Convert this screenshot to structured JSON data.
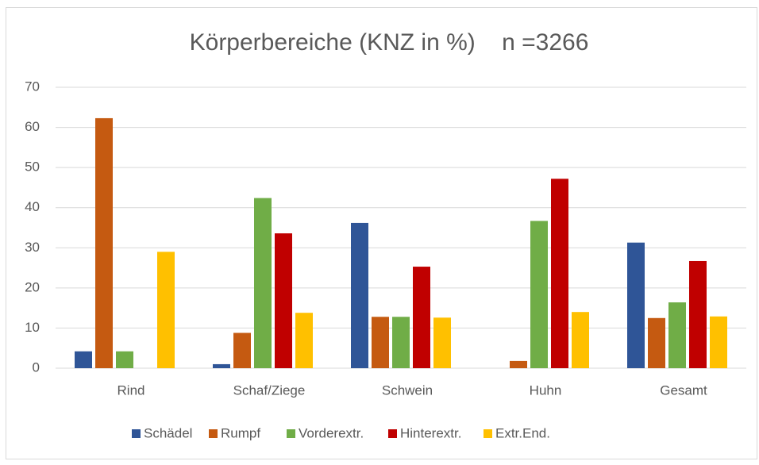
{
  "chart_data": {
    "type": "bar",
    "title": "Körperbereiche (KNZ in %)    n =3266",
    "categories": [
      "Rind",
      "Schaf/Ziege",
      "Schwein",
      "Huhn",
      "Gesamt"
    ],
    "series": [
      {
        "name": "Schädel",
        "color": "#2f5597",
        "values": [
          4.2,
          1.0,
          36.2,
          0,
          31.3
        ]
      },
      {
        "name": "Rumpf",
        "color": "#c55a11",
        "values": [
          62.3,
          8.8,
          12.8,
          1.8,
          12.5
        ]
      },
      {
        "name": "Vorderextr.",
        "color": "#70ad47",
        "values": [
          4.2,
          42.4,
          12.8,
          36.7,
          16.4
        ]
      },
      {
        "name": "Hinterextr.",
        "color": "#c00000",
        "values": [
          0,
          33.6,
          25.3,
          47.2,
          26.7
        ]
      },
      {
        "name": "Extr.End.",
        "color": "#ffc000",
        "values": [
          29.0,
          13.8,
          12.6,
          14.0,
          12.9
        ]
      }
    ],
    "ylim": [
      0,
      70
    ],
    "yticks": [
      0,
      10,
      20,
      30,
      40,
      50,
      60,
      70
    ],
    "grid": true,
    "legend": "bottom"
  }
}
